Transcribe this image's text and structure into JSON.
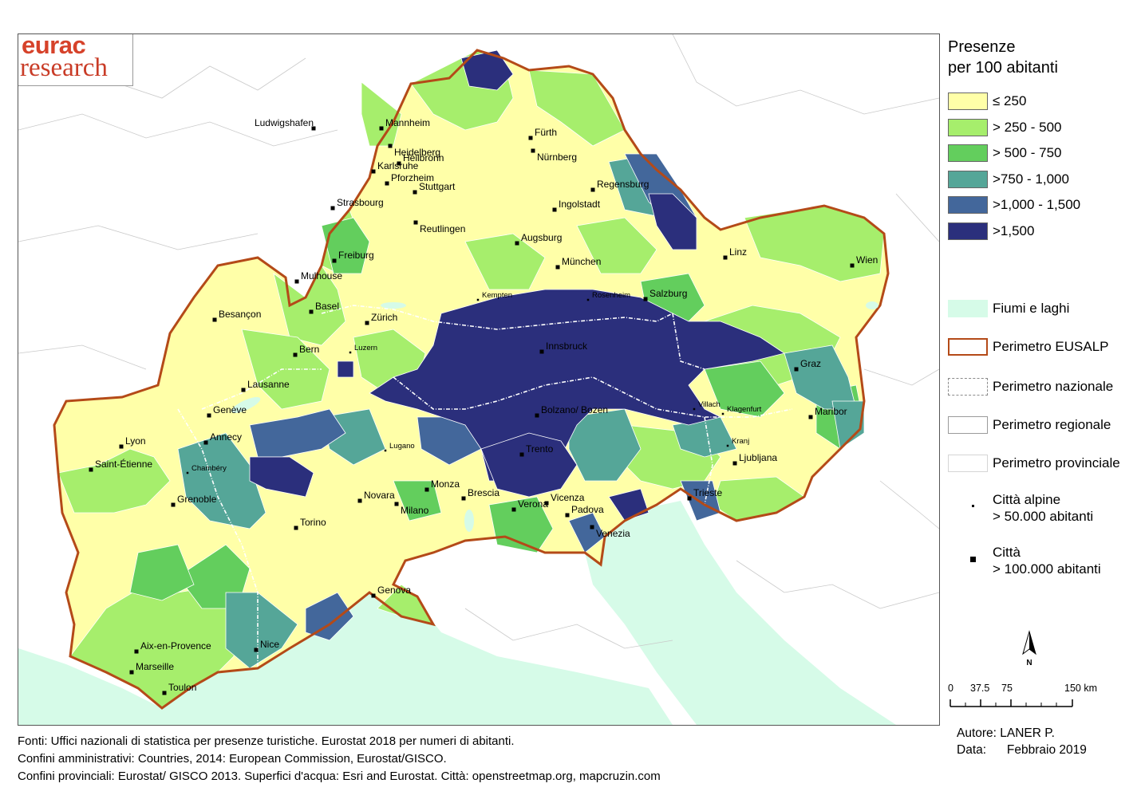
{
  "logo": {
    "line1": "eurac",
    "line2": "research"
  },
  "legend": {
    "title_line1": "Presenze",
    "title_line2": "per 100 abitanti",
    "classes": [
      {
        "label": "≤ 250",
        "color": "#ffffa8"
      },
      {
        "label": "> 250 - 500",
        "color": "#a6ee6c"
      },
      {
        "label": "> 500 - 750",
        "color": "#63ce5d"
      },
      {
        "label": ">750 - 1,000",
        "color": "#55a698"
      },
      {
        "label": ">1,000 - 1,500",
        "color": "#43679b"
      },
      {
        "label": ">1,500",
        "color": "#2b2f7c"
      }
    ],
    "features": [
      {
        "label": "Fiumi e laghi",
        "color": "#d6fbe8"
      },
      {
        "label": "Perimetro EUSALP",
        "color": "#b44a18"
      },
      {
        "label": "Perimetro nazionale",
        "color": "#8a8a8a"
      },
      {
        "label": "Perimetro regionale",
        "color": "#9a9a9a"
      },
      {
        "label": "Perimetro provinciale",
        "color": "#d5d5d5"
      }
    ],
    "cities_alpine_line1": "Città alpine",
    "cities_alpine_line2": "> 50.000 abitanti",
    "cities_big_line1": "Città",
    "cities_big_line2": "> 100.000 abitanti"
  },
  "north_label": "N",
  "scale": {
    "ticks": [
      "0",
      "37.5",
      "75",
      "150 km"
    ]
  },
  "credits": [
    "Fonti: Uffici nazionali di statistica per presenze turistiche. Eurostat 2018 per numeri di abitanti.",
    "Confini amministrativi: Countries, 2014: European Commission, Eurostat/GISCO.",
    "Confini provinciali: Eurostat/ GISCO 2013. Superfici d'acqua: Esri and Eurostat. Città: openstreetmap.org, mapcruzin.com"
  ],
  "author": {
    "line1": "Autore: LANER P.",
    "line2_label": "Data:",
    "line2_value": "Febbraio 2019"
  },
  "cities": [
    {
      "name": "Ludwigshafen",
      "small": false
    },
    {
      "name": "Mannheim",
      "small": false
    },
    {
      "name": "Heidelberg",
      "small": false
    },
    {
      "name": "Fürth",
      "small": false
    },
    {
      "name": "Nürnberg",
      "small": false
    },
    {
      "name": "Heilbronn",
      "small": false
    },
    {
      "name": "Karlsruhe",
      "small": false
    },
    {
      "name": "Pforzheim",
      "small": false
    },
    {
      "name": "Stuttgart",
      "small": false
    },
    {
      "name": "Regensburg",
      "small": false
    },
    {
      "name": "Ingolstadt",
      "small": false
    },
    {
      "name": "Strasbourg",
      "small": false
    },
    {
      "name": "Reutlingen",
      "small": false
    },
    {
      "name": "Augsburg",
      "small": false
    },
    {
      "name": "Freiburg",
      "small": false
    },
    {
      "name": "Linz",
      "small": false
    },
    {
      "name": "Wien",
      "small": false
    },
    {
      "name": "München",
      "small": false
    },
    {
      "name": "Mulhouse",
      "small": false
    },
    {
      "name": "Basel",
      "small": false
    },
    {
      "name": "Kempten",
      "small": true
    },
    {
      "name": "Rosenheim",
      "small": true
    },
    {
      "name": "Salzburg",
      "small": false
    },
    {
      "name": "Besançon",
      "small": false
    },
    {
      "name": "Zürich",
      "small": false
    },
    {
      "name": "Innsbruck",
      "small": false
    },
    {
      "name": "Luzern",
      "small": true
    },
    {
      "name": "Bern",
      "small": false
    },
    {
      "name": "Graz",
      "small": false
    },
    {
      "name": "Lausanne",
      "small": false
    },
    {
      "name": "Villach",
      "small": true
    },
    {
      "name": "Klagenfurt",
      "small": true
    },
    {
      "name": "Genève",
      "small": false
    },
    {
      "name": "Bolzano/ Bozen",
      "small": false
    },
    {
      "name": "Maribor",
      "small": false
    },
    {
      "name": "Annecy",
      "small": false
    },
    {
      "name": "Lyon",
      "small": false
    },
    {
      "name": "Kranj",
      "small": true
    },
    {
      "name": "Lugano",
      "small": true
    },
    {
      "name": "Trento",
      "small": false
    },
    {
      "name": "Ljubljana",
      "small": false
    },
    {
      "name": "Saint-Étienne",
      "small": false
    },
    {
      "name": "Chambéry",
      "small": true
    },
    {
      "name": "Monza",
      "small": false
    },
    {
      "name": "Novara",
      "small": false
    },
    {
      "name": "Milano",
      "small": false
    },
    {
      "name": "Brescia",
      "small": false
    },
    {
      "name": "Trieste",
      "small": false
    },
    {
      "name": "Vicenza",
      "small": false
    },
    {
      "name": "Grenoble",
      "small": false
    },
    {
      "name": "Verona",
      "small": false
    },
    {
      "name": "Padova",
      "small": false
    },
    {
      "name": "Venezia",
      "small": false
    },
    {
      "name": "Torino",
      "small": false
    },
    {
      "name": "Genova",
      "small": false
    },
    {
      "name": "Aix-en-Provence",
      "small": false
    },
    {
      "name": "Nice",
      "small": false
    },
    {
      "name": "Marseille",
      "small": false
    },
    {
      "name": "Toulon",
      "small": false
    }
  ]
}
